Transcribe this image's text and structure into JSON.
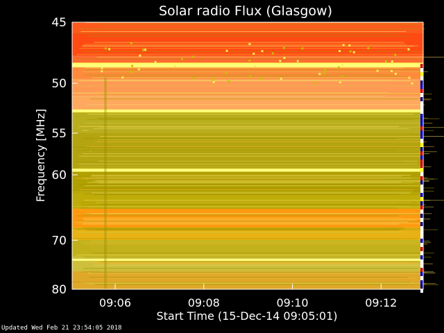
{
  "updated": "Updated Wed Feb 21 23:54:05 2018",
  "chart_data": {
    "type": "heatmap",
    "title": "Solar radio Flux (Glasgow)",
    "xlabel": "Start Time (15-Dec-14 09:05:01)",
    "ylabel": "Frequency [MHz]",
    "x_ticks": [
      "09:06",
      "09:08",
      "09:10",
      "09:12"
    ],
    "x_tick_minutes": [
      6,
      8,
      10,
      12
    ],
    "xlim_minutes": [
      5.03,
      12.95
    ],
    "y_ticks": [
      45,
      50,
      55,
      60,
      70,
      80
    ],
    "ylim": [
      45,
      80
    ],
    "y_scale": "reciprocal",
    "grid": false,
    "colors": {
      "hot_red": "#ff4a14",
      "orange": "#ff8a1e",
      "salmon": "#ff9a55",
      "olive": "#b8a800",
      "khaki": "#cdbf3c",
      "yellow": "#ffff66"
    },
    "bands": [
      {
        "from": 45.0,
        "to": 45.8,
        "color": "#ff5a1e"
      },
      {
        "from": 45.8,
        "to": 47.6,
        "color": "#ff4a14"
      },
      {
        "from": 47.6,
        "to": 48.2,
        "color": "#ff6a30"
      },
      {
        "from": 48.2,
        "to": 48.6,
        "color": "#ffff66"
      },
      {
        "from": 48.6,
        "to": 49.6,
        "color": "#ff8a3c"
      },
      {
        "from": 49.6,
        "to": 51.2,
        "color": "#ff9a55"
      },
      {
        "from": 51.2,
        "to": 52.5,
        "color": "#ffa860"
      },
      {
        "from": 52.5,
        "to": 52.8,
        "color": "#ffff55"
      },
      {
        "from": 52.8,
        "to": 55.0,
        "color": "#b9ae1e"
      },
      {
        "from": 55.0,
        "to": 59.2,
        "color": "#b3a410"
      },
      {
        "from": 59.2,
        "to": 59.6,
        "color": "#ffff70"
      },
      {
        "from": 59.6,
        "to": 62.5,
        "color": "#b0a000"
      },
      {
        "from": 62.5,
        "to": 64.8,
        "color": "#c0ac08"
      },
      {
        "from": 64.8,
        "to": 67.8,
        "color": "#ff9a10"
      },
      {
        "from": 67.8,
        "to": 70.0,
        "color": "#e8b214"
      },
      {
        "from": 70.0,
        "to": 73.0,
        "color": "#c2b11a"
      },
      {
        "from": 73.0,
        "to": 76.0,
        "color": "#cdbf3c"
      },
      {
        "from": 76.0,
        "to": 80.0,
        "color": "#e0a82a"
      }
    ],
    "bright_lines": [
      48.4,
      52.6,
      59.4,
      73.6
    ]
  }
}
